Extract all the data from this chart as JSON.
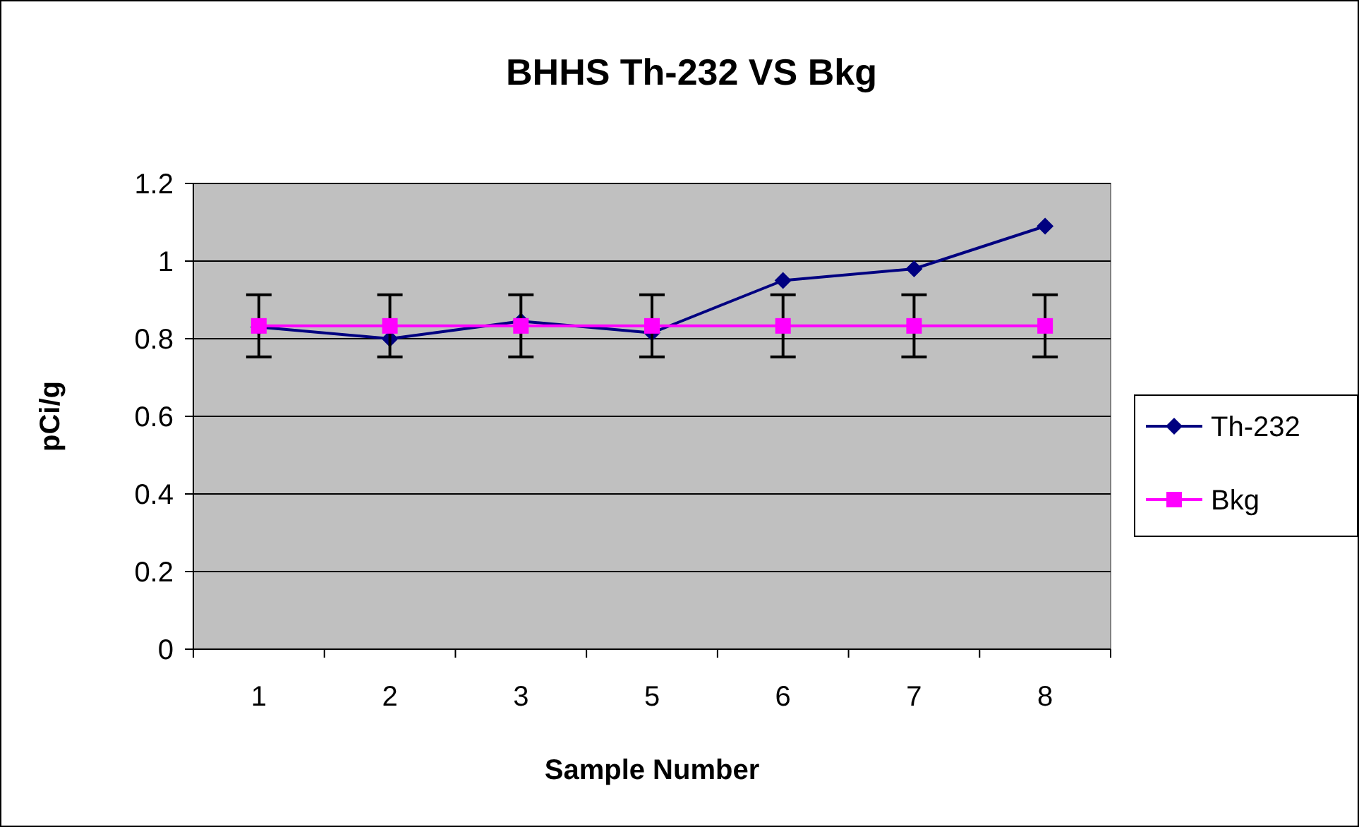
{
  "chart_data": {
    "type": "line",
    "title": "BHHS Th-232 VS Bkg",
    "xlabel": "Sample Number",
    "ylabel": "pCi/g",
    "categories": [
      "1",
      "2",
      "3",
      "5",
      "6",
      "7",
      "8"
    ],
    "series": [
      {
        "name": "Th-232",
        "color": "#000080",
        "marker": "diamond",
        "values": [
          0.83,
          0.8,
          0.845,
          0.815,
          0.95,
          0.98,
          1.09
        ]
      },
      {
        "name": "Bkg",
        "color": "#ff00ff",
        "marker": "square",
        "values": [
          0.833,
          0.833,
          0.833,
          0.833,
          0.833,
          0.833,
          0.833
        ],
        "errors": [
          0.08,
          0.08,
          0.08,
          0.08,
          0.08,
          0.08,
          0.08
        ]
      }
    ],
    "ylim": [
      0,
      1.2
    ],
    "yticks": [
      0,
      0.2,
      0.4,
      0.6,
      0.8,
      1,
      1.2
    ],
    "grid": "y",
    "legend": "right",
    "line_style": "solid"
  }
}
